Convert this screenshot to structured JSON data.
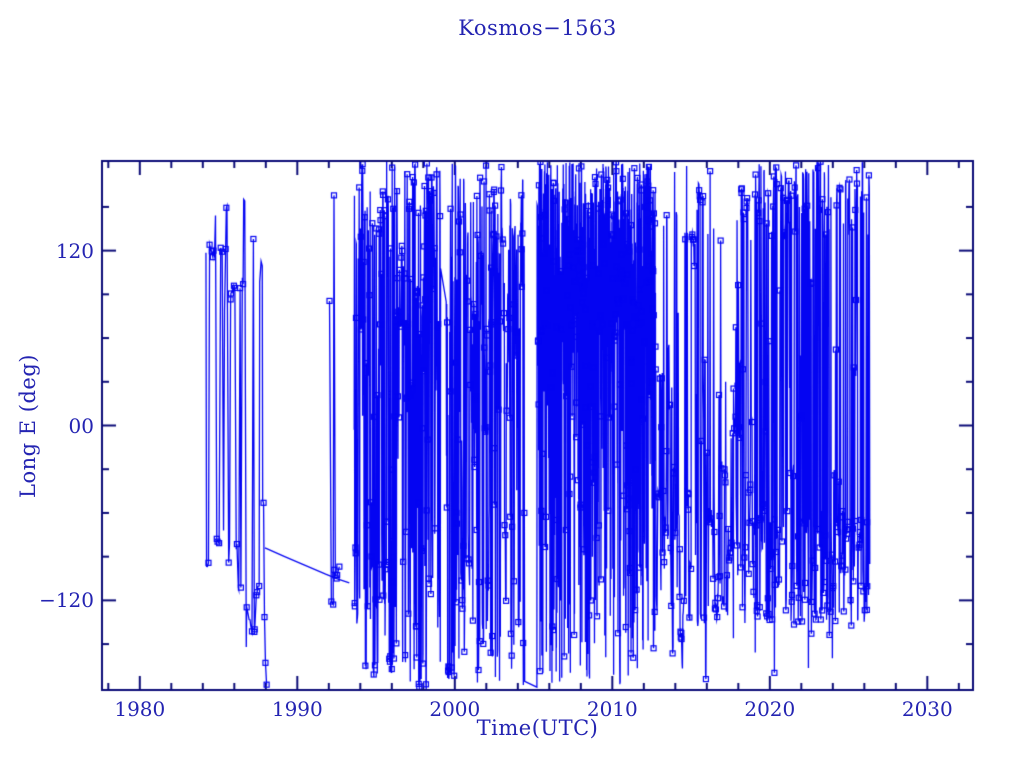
{
  "chart_data": {
    "type": "scatter",
    "title": "Kosmos−1563",
    "xlabel": "Time(UTC)",
    "ylabel": "Long E (deg)",
    "xlim": [
      1977.6,
      2032.9
    ],
    "ylim": [
      -181.5,
      181.5
    ],
    "x_ticks": [
      {
        "value": 1980,
        "label": "1980"
      },
      {
        "value": 1990,
        "label": "1990"
      },
      {
        "value": 2000,
        "label": "2000"
      },
      {
        "value": 2010,
        "label": "2010"
      },
      {
        "value": 2020,
        "label": "2020"
      },
      {
        "value": 2030,
        "label": "2030"
      }
    ],
    "x_minor_step": 2,
    "y_ticks": [
      {
        "value": 120,
        "label": "120"
      },
      {
        "value": 0,
        "label": "00"
      },
      {
        "value": -120,
        "label": "−120"
      }
    ],
    "y_minor_step": 30,
    "grid": false,
    "legend": "none",
    "colors": {
      "data": "#0404f2",
      "frame": "#0b0b77",
      "text": "#2424b2",
      "background": "#ffffff"
    },
    "marker": {
      "shape": "open-square",
      "size": 5
    },
    "description": "Sub-satellite longitude (deg E) of Kosmos-1563 vs time; longitude wraps at ±180 producing dense vertical lines. Data spans ~1984.2 to ~2026.4.",
    "seed": 15631984,
    "eras": [
      {
        "t0": 1984.15,
        "t1": 1988.1,
        "per_year": 16,
        "hold": 0.45,
        "marker_p": 0.55,
        "bands": [
          [
            85,
            130,
            0.28
          ],
          [
            -135,
            -70,
            0.3
          ],
          [
            -181,
            181,
            0.42
          ]
        ],
        "gaps": []
      },
      {
        "t0": 1992.0,
        "t1": 1992.7,
        "per_year": 10,
        "hold": 0.3,
        "marker_p": 0.7,
        "bands": [
          [
            10,
            160,
            0.7
          ],
          [
            -130,
            -95,
            0.3
          ]
        ],
        "gaps": []
      },
      {
        "t0": 1993.6,
        "t1": 2005.3,
        "per_year": 62,
        "hold": 0.3,
        "marker_p": 0.38,
        "bands": [
          [
            65,
            181,
            0.4
          ],
          [
            -181,
            -55,
            0.32
          ],
          [
            -10,
            65,
            0.12
          ],
          [
            -181,
            181,
            0.16
          ]
        ],
        "gaps": [
          [
            1999.1,
            1999.45
          ],
          [
            2004.45,
            2005.2
          ]
        ]
      },
      {
        "t0": 2005.3,
        "t1": 2012.75,
        "per_year": 125,
        "hold": 0.18,
        "marker_p": 0.25,
        "bands": [
          [
            60,
            181,
            0.6
          ],
          [
            -181,
            60,
            0.16
          ],
          [
            -181,
            181,
            0.24
          ]
        ],
        "gaps": []
      },
      {
        "t0": 2012.75,
        "t1": 2019.0,
        "per_year": 42,
        "hold": 0.5,
        "marker_p": 0.5,
        "bands": [
          [
            -70,
            40,
            0.33
          ],
          [
            -135,
            -55,
            0.27
          ],
          [
            120,
            181,
            0.12
          ],
          [
            -181,
            181,
            0.28
          ]
        ],
        "gaps": []
      },
      {
        "t0": 2019.0,
        "t1": 2026.35,
        "per_year": 60,
        "hold": 0.35,
        "marker_p": 0.35,
        "bands": [
          [
            128,
            181,
            0.33
          ],
          [
            -135,
            -58,
            0.45
          ],
          [
            -181,
            181,
            0.22
          ]
        ],
        "gaps": []
      }
    ],
    "drift_line": {
      "points": [
        [
          1987.95,
          -84
        ],
        [
          1989.2,
          -90
        ],
        [
          1990.5,
          -96
        ],
        [
          1991.8,
          -102
        ],
        [
          1992.5,
          -105
        ],
        [
          1993.3,
          -108
        ]
      ],
      "marker_points": [
        [
          1992.5,
          -105
        ],
        [
          1992.35,
          -99
        ]
      ]
    }
  }
}
